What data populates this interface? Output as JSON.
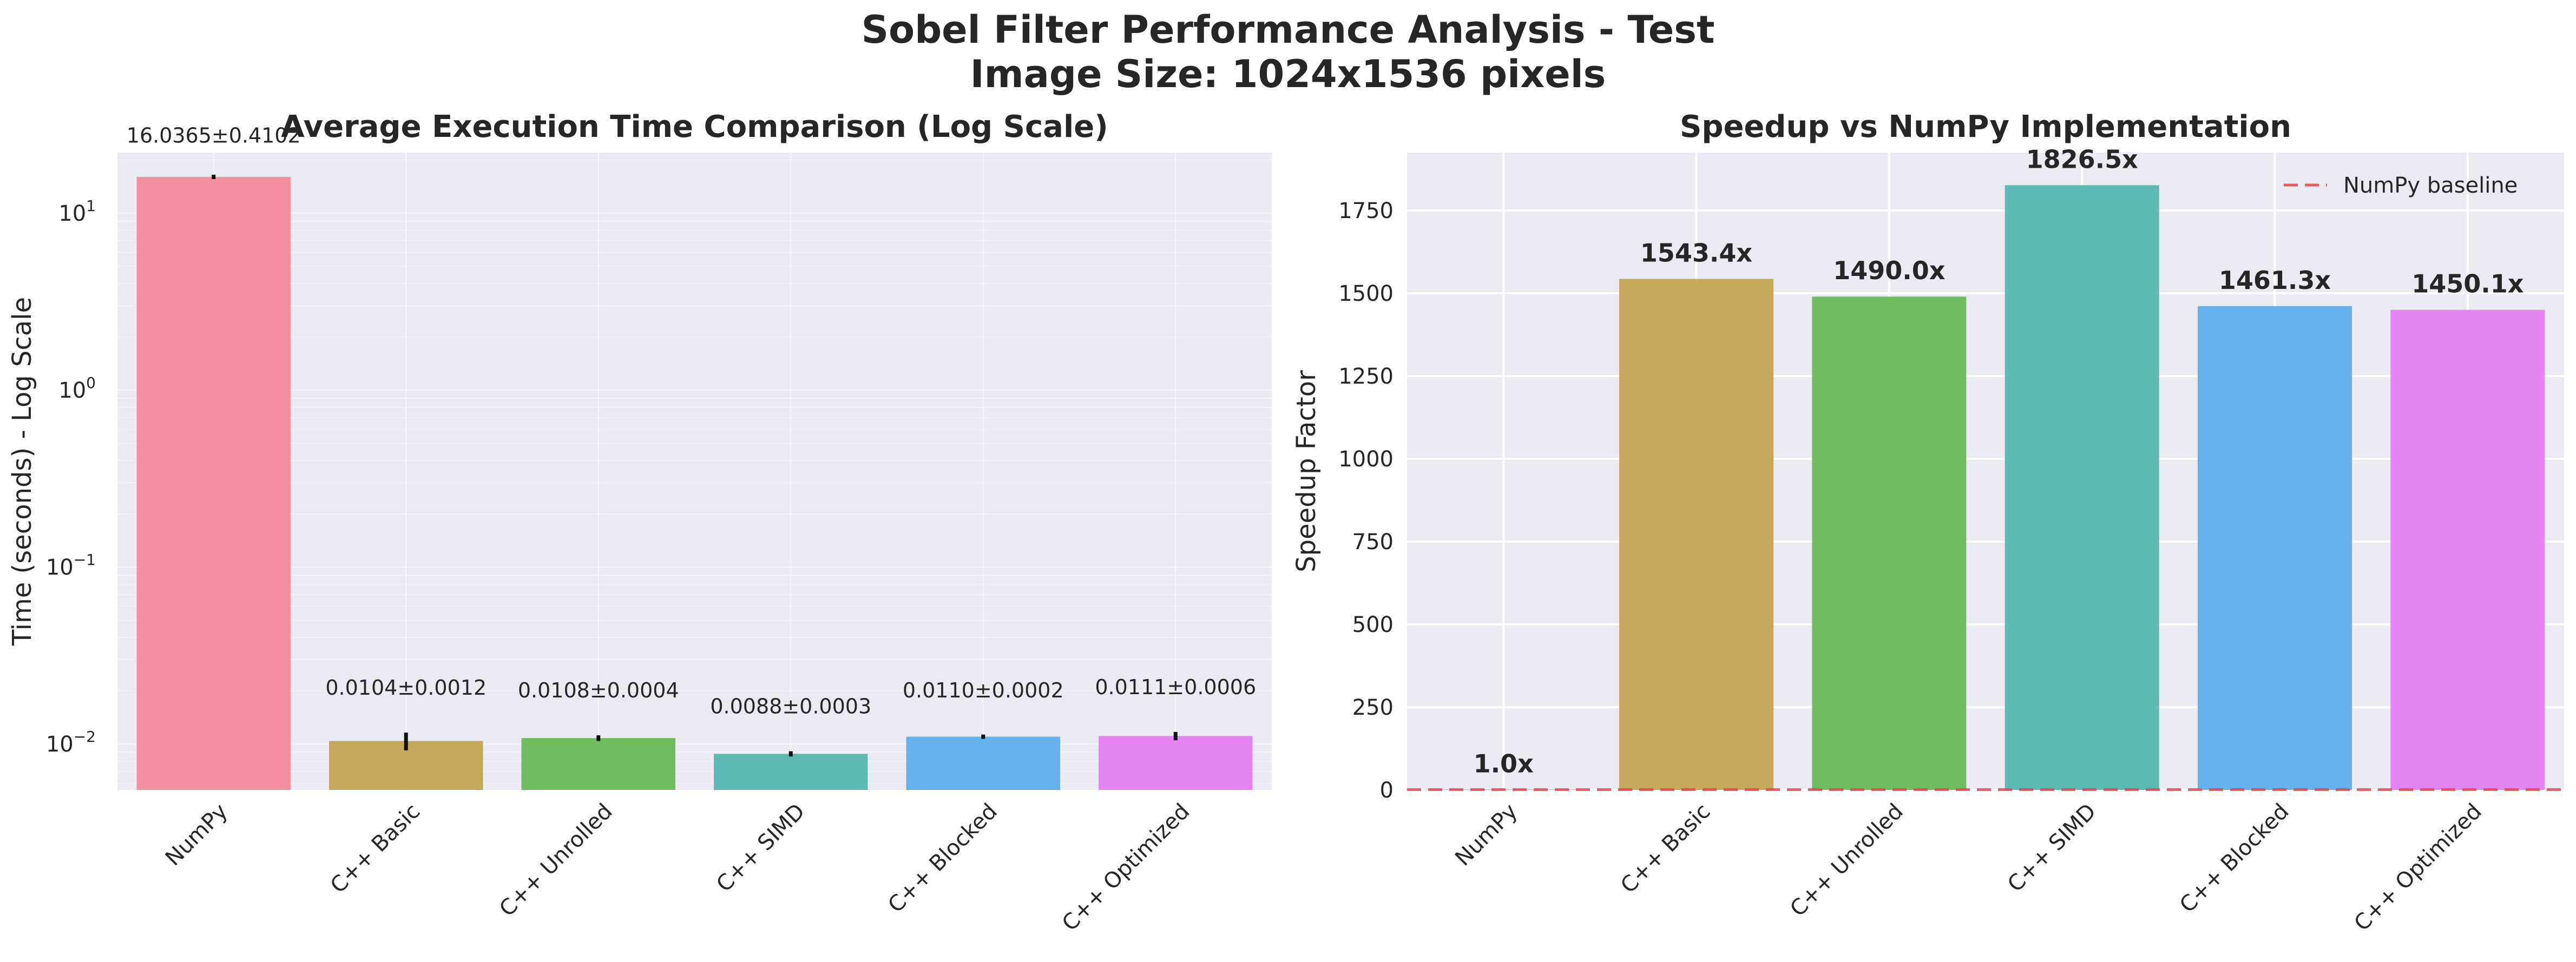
{
  "figure": {
    "suptitle_line1": "Sobel Filter Performance Analysis - Test",
    "suptitle_line2": "Image Size: 1024x1536 pixels"
  },
  "colors": {
    "background_axes": "#eaeaf2",
    "grid": "#ffffff",
    "bars": [
      "#f38b9b",
      "#c3a353",
      "#6abb55",
      "#56b8b0",
      "#5eaeea",
      "#e57ff0"
    ],
    "baseline": "#e8414a"
  },
  "chart_data": [
    {
      "type": "bar",
      "title": "Average Execution Time Comparison (Log Scale)",
      "ylabel": "Time (seconds) - Log Scale",
      "xlabel": "",
      "yscale": "log",
      "ylim": [
        0.0055,
        22
      ],
      "yticks": [
        0.01,
        0.1,
        1,
        10
      ],
      "ytick_labels": [
        {
          "base": "10",
          "exp": "−2"
        },
        {
          "base": "10",
          "exp": "−1"
        },
        {
          "base": "10",
          "exp": "0"
        },
        {
          "base": "10",
          "exp": "1"
        }
      ],
      "grid": true,
      "categories": [
        "NumPy",
        "C++ Basic",
        "C++ Unrolled",
        "C++ SIMD",
        "C++ Blocked",
        "C++ Optimized"
      ],
      "values": [
        16.0365,
        0.0104,
        0.0108,
        0.0088,
        0.011,
        0.0111
      ],
      "errors": [
        0.4102,
        0.0012,
        0.0004,
        0.0003,
        0.0002,
        0.0006
      ],
      "data_labels": [
        "16.0365±0.4102",
        "0.0104±0.0012",
        "0.0108±0.0004",
        "0.0088±0.0003",
        "0.0110±0.0002",
        "0.0111±0.0006"
      ]
    },
    {
      "type": "bar",
      "title": "Speedup vs NumPy Implementation",
      "ylabel": "Speedup Factor",
      "xlabel": "",
      "ylim": [
        0,
        1925
      ],
      "yticks": [
        0,
        250,
        500,
        750,
        1000,
        1250,
        1500,
        1750
      ],
      "ytick_labels": [
        "0",
        "250",
        "500",
        "750",
        "1000",
        "1250",
        "1500",
        "1750"
      ],
      "grid": true,
      "categories": [
        "NumPy",
        "C++ Basic",
        "C++ Unrolled",
        "C++ SIMD",
        "C++ Blocked",
        "C++ Optimized"
      ],
      "values": [
        1.0,
        1543.4,
        1490.0,
        1826.5,
        1461.3,
        1450.1
      ],
      "data_labels": [
        "1.0x",
        "1543.4x",
        "1490.0x",
        "1826.5x",
        "1461.3x",
        "1450.1x"
      ],
      "baseline": 1,
      "legend": {
        "label": "NumPy baseline",
        "position": "top-right"
      }
    }
  ]
}
